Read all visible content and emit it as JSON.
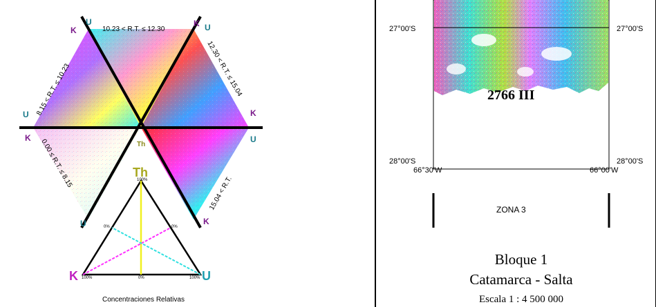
{
  "ternary_legend": {
    "vertex_labels": {
      "top": "U",
      "upper_right": "K",
      "right": "U",
      "lower_right": "K",
      "bottom": "Th",
      "lower_left": "K",
      "left": "U",
      "upper_left": "K"
    },
    "sector_labels": {
      "top": "10.23 < R.T. ≤ 12.30",
      "upper_right": "12.30 < R.T. ≤ 15.04",
      "lower_right": "15.04 < R.T.",
      "lower_left": "0.00 ≤ R.T. ≤ 8.15",
      "upper_left": "8.15 < R.T. ≤ 10.23"
    },
    "center_label": "Th",
    "key_triangle": {
      "top_label": "Th",
      "left_label": "K",
      "right_label": "U",
      "ticks": {
        "top": "100%",
        "left_mid": "0%",
        "right_mid": "0%",
        "bottom_left": "100%",
        "bottom_mid": "0%",
        "bottom_right": "100%"
      }
    },
    "caption": "Concentraciones Relativas"
  },
  "map": {
    "lat_top": "27°00'S",
    "lat_bottom": "28°00'S",
    "lon_left": "66°30'W",
    "lon_right": "66°00'W",
    "sheet_label": "2766 III",
    "zone_label": "ZONA 3",
    "block_title": "Bloque 1",
    "region": "Catamarca - Salta",
    "scale": "Escala 1 : 4 500 000"
  }
}
